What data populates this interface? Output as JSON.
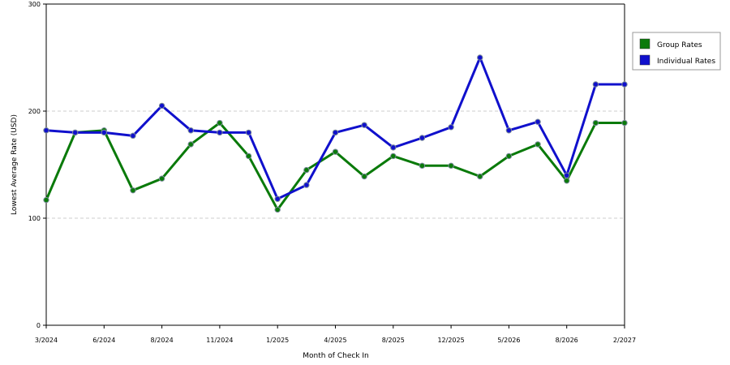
{
  "chart_data": {
    "type": "line",
    "title": "",
    "xlabel": "Month of Check In",
    "ylabel": "Lowest Average Rate (USD)",
    "ylim": [
      0,
      300
    ],
    "yticks": [
      0,
      100,
      200,
      300
    ],
    "grid": "horizontal-dashed",
    "legend_position": "right",
    "x_tick_labels": [
      "3/2024",
      "6/2024",
      "8/2024",
      "11/2024",
      "1/2025",
      "4/2025",
      "8/2025",
      "12/2025",
      "5/2026",
      "8/2026",
      "2/2027"
    ],
    "x_tick_positions": [
      0,
      2,
      4,
      6,
      8,
      10,
      12,
      14,
      16,
      18,
      20
    ],
    "point_count": 21,
    "series": [
      {
        "name": "Group Rates",
        "color": "#0a7a0a",
        "values": [
          117,
          180,
          182,
          126,
          137,
          169,
          189,
          158,
          108,
          145,
          162,
          139,
          158,
          149,
          149,
          139,
          158,
          169,
          135,
          189,
          189
        ]
      },
      {
        "name": "Individual Rates",
        "color": "#1010cc",
        "values": [
          182,
          180,
          180,
          177,
          205,
          182,
          180,
          180,
          118,
          131,
          180,
          187,
          166,
          175,
          185,
          250,
          182,
          190,
          140,
          225,
          225
        ]
      }
    ]
  }
}
